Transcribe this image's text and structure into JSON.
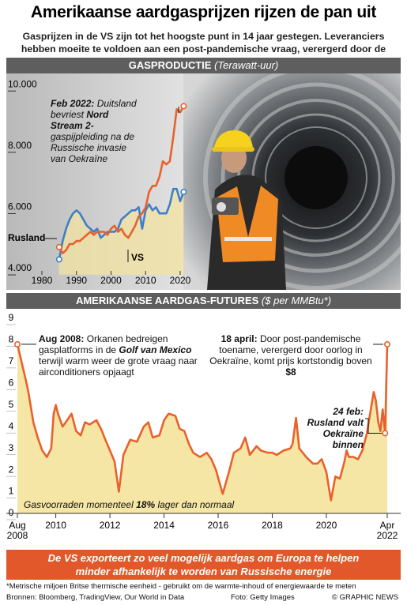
{
  "header": {
    "title": "Amerikaanse aardgasprijzen rijzen de pan uit",
    "subtitle": "Gasprijzen in de VS zijn tot het hoogste punt in 14 jaar gestegen. Leveranciers hebben moeite te voldoen aan een post-pandemische vraag, verergerd door de oorlog in Oekraïne"
  },
  "chart_data": [
    {
      "type": "line",
      "title": "GASPRODUCTIE",
      "subtitle": "(Terawatt-uur)",
      "x": [
        1985,
        1986,
        1987,
        1988,
        1989,
        1990,
        1991,
        1992,
        1993,
        1994,
        1995,
        1996,
        1997,
        1998,
        1999,
        2000,
        2001,
        2002,
        2003,
        2004,
        2005,
        2006,
        2007,
        2008,
        2009,
        2010,
        2011,
        2012,
        2013,
        2014,
        2015,
        2016,
        2017,
        2018,
        2019,
        2020,
        2021
      ],
      "series": [
        {
          "name": "Rusland",
          "color": "#3f7fc6",
          "values": [
            4300,
            4900,
            5300,
            5600,
            5800,
            5900,
            5800,
            5600,
            5400,
            5300,
            5200,
            5300,
            5000,
            5100,
            5200,
            5200,
            5200,
            5300,
            5600,
            5700,
            5800,
            5900,
            5900,
            6000,
            5300,
            5900,
            6100,
            5900,
            6000,
            5800,
            5800,
            5800,
            6100,
            6600,
            6600,
            6200,
            6500
          ]
        },
        {
          "name": "VS",
          "color": "#e8612c",
          "values": [
            4700,
            4500,
            4600,
            4800,
            4800,
            4900,
            4900,
            5000,
            5100,
            5200,
            5100,
            5200,
            5200,
            5200,
            5100,
            5300,
            5400,
            5200,
            5300,
            5100,
            5000,
            5200,
            5400,
            5700,
            5800,
            6000,
            6500,
            6700,
            6700,
            7000,
            7500,
            7400,
            7500,
            8300,
            9200,
            9100,
            9300
          ]
        }
      ],
      "xlim": [
        1976,
        2024
      ],
      "xticks": [
        1980,
        1990,
        2000,
        2010,
        2020
      ],
      "ylim": [
        3800,
        10300
      ],
      "yticks": [
        {
          "value": 4000,
          "label": "4.000"
        },
        {
          "value": 6000,
          "label": "6.000"
        },
        {
          "value": 8000,
          "label": "8.000"
        },
        {
          "value": 10000,
          "label": "10.000"
        }
      ],
      "grid": false,
      "annotation": [
        "Feb 2022:",
        "Duitsland bevriest",
        "Nord Stream 2-",
        "gaspijpleiding na de Russische invasie van Oekraïne"
      ]
    },
    {
      "type": "line",
      "title": "AMERIKAANSE AARDGAS-FUTURES",
      "subtitle": "($ per MMBtu*)",
      "x": [
        2008.58,
        2008.75,
        2008.92,
        2009.0,
        2009.17,
        2009.33,
        2009.5,
        2009.67,
        2009.83,
        2009.92,
        2010.0,
        2010.08,
        2010.25,
        2010.42,
        2010.58,
        2010.75,
        2010.92,
        2011.08,
        2011.25,
        2011.5,
        2011.67,
        2011.83,
        2012.0,
        2012.17,
        2012.33,
        2012.5,
        2012.75,
        2013.0,
        2013.25,
        2013.42,
        2013.58,
        2013.83,
        2014.0,
        2014.17,
        2014.42,
        2014.58,
        2014.75,
        2014.92,
        2015.08,
        2015.33,
        2015.58,
        2015.75,
        2015.92,
        2016.17,
        2016.42,
        2016.58,
        2016.83,
        2017.0,
        2017.17,
        2017.42,
        2017.58,
        2017.83,
        2018.0,
        2018.17,
        2018.42,
        2018.67,
        2018.75,
        2018.88,
        2019.0,
        2019.25,
        2019.5,
        2019.67,
        2019.83,
        2020.0,
        2020.17,
        2020.33,
        2020.5,
        2020.67,
        2020.75,
        2020.83,
        2021.0,
        2021.17,
        2021.33,
        2021.5,
        2021.67,
        2021.75,
        2021.83,
        2021.92,
        2022.0,
        2022.08,
        2022.17,
        2022.25
      ],
      "series": [
        {
          "color": "#e8612c",
          "values": [
            7.8,
            6.9,
            6.0,
            5.5,
            4.2,
            3.5,
            2.9,
            2.6,
            3.0,
            4.6,
            5.0,
            4.6,
            4.0,
            4.3,
            4.6,
            3.8,
            3.6,
            4.2,
            4.1,
            4.3,
            3.9,
            3.4,
            2.9,
            2.4,
            1.0,
            2.7,
            3.4,
            3.3,
            4.0,
            4.2,
            3.5,
            3.6,
            4.3,
            4.6,
            4.5,
            3.9,
            3.8,
            3.2,
            2.8,
            2.6,
            2.8,
            2.5,
            2.0,
            0.9,
            2.0,
            2.8,
            3.0,
            3.5,
            2.7,
            3.1,
            2.9,
            2.8,
            2.8,
            2.7,
            2.9,
            3.0,
            3.2,
            4.4,
            3.0,
            2.6,
            2.3,
            2.3,
            2.5,
            1.9,
            0.6,
            1.7,
            1.6,
            2.4,
            2.9,
            2.6,
            2.6,
            2.5,
            2.9,
            3.7,
            5.0,
            5.6,
            5.2,
            4.2,
            3.8,
            4.8,
            3.7,
            7.8
          ]
        }
      ],
      "xlim": [
        2008.58,
        2022.25
      ],
      "xticks": [
        {
          "value": 2008.58,
          "label": "Aug 2008"
        },
        2010,
        2012,
        2014,
        2016,
        2018,
        2020,
        {
          "value": 2022.25,
          "label": "Apr 2022"
        }
      ],
      "ylim": [
        0,
        9
      ],
      "yticks": [
        0,
        1,
        2,
        3,
        4,
        5,
        6,
        7,
        8,
        9
      ],
      "grid": false,
      "annotations": [
        [
          "Aug 2008:",
          "Orkanen bedreigen gasplatforms in de",
          "Golf van Mexico",
          "terwijl warm weer de grote vraag naar airconditioners opjaagt"
        ],
        [
          "18 april:",
          "Door post-pandemische toename, verergerd door oorlog in Oekraïne, komt prijs kortstondig boven",
          "$8"
        ],
        [
          "24 feb: Rusland valt Oekraïne binnen"
        ],
        [
          "Gasvoorraden momenteel",
          "18%",
          "lager dan normaal"
        ]
      ]
    }
  ],
  "banner": "De VS exporteert zo veel mogelijk aardgas om Europa te helpen minder afhankelijk te worden van Russische energie",
  "footnote": "*Metrische miljoen Britse thermische eenheid - gebruikt om de warmte-inhoud of energiewaarde te meten",
  "sources": "Bronnen: Bloomberg, TradingView, Our World in Data",
  "credit": "Foto: Getty Images",
  "brand": "© GRAPHIC NEWS"
}
